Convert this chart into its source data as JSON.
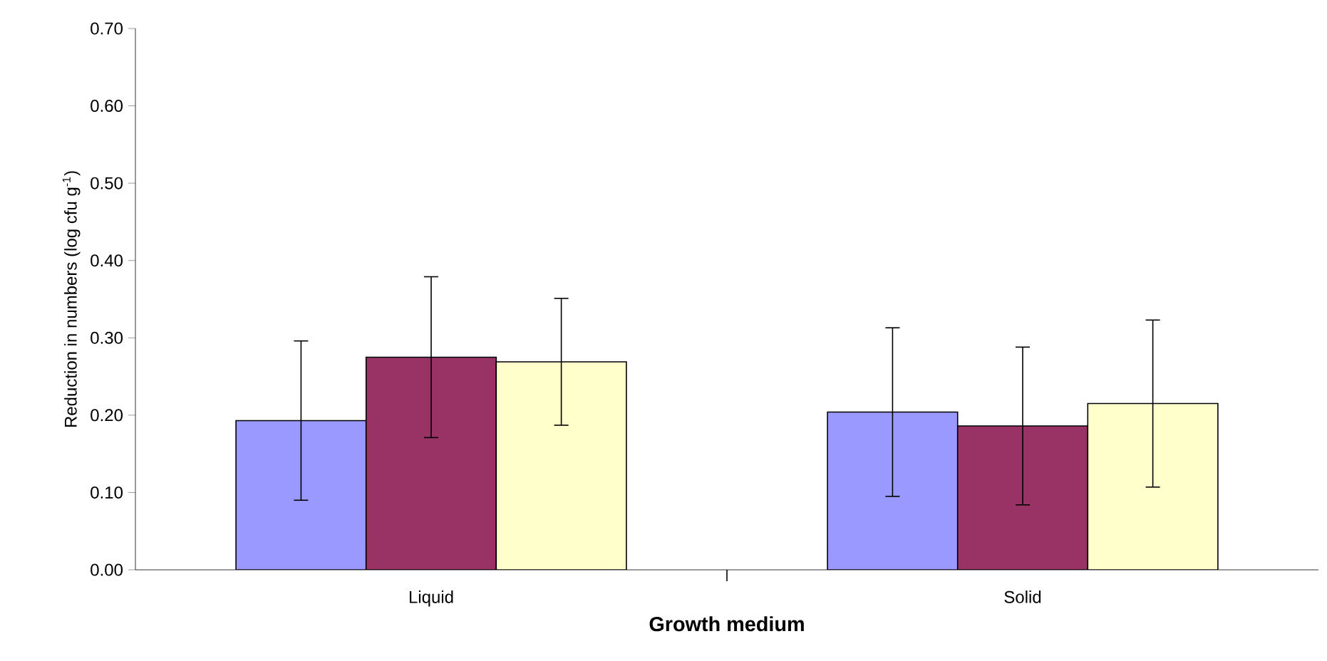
{
  "chart_data": {
    "type": "bar",
    "xlabel": "Growth medium",
    "ylabel": "Reduction in numbers (log cfu g$^{-1}$)",
    "categories": [
      "Liquid",
      "Solid"
    ],
    "series": [
      {
        "color": "#9999ff",
        "values": [
          0.193,
          0.204
        ],
        "errors": [
          0.103,
          0.109
        ]
      },
      {
        "color": "#993366",
        "values": [
          0.275,
          0.186
        ],
        "errors": [
          0.104,
          0.102
        ]
      },
      {
        "color": "#ffffcc",
        "values": [
          0.269,
          0.215
        ],
        "errors": [
          0.082,
          0.108
        ]
      }
    ],
    "ylim": [
      0,
      0.7
    ],
    "yticks": [
      {
        "value": 0,
        "label": "0.00"
      },
      {
        "value": 0.1,
        "label": "0.10"
      },
      {
        "value": 0.2,
        "label": "0.20"
      },
      {
        "value": 0.3,
        "label": "0.30"
      },
      {
        "value": 0.4,
        "label": "0.40"
      },
      {
        "value": 0.5,
        "label": "0.50"
      },
      {
        "value": 0.6,
        "label": "0.60"
      },
      {
        "value": 0.7,
        "label": "0.70"
      }
    ],
    "grid": false
  }
}
